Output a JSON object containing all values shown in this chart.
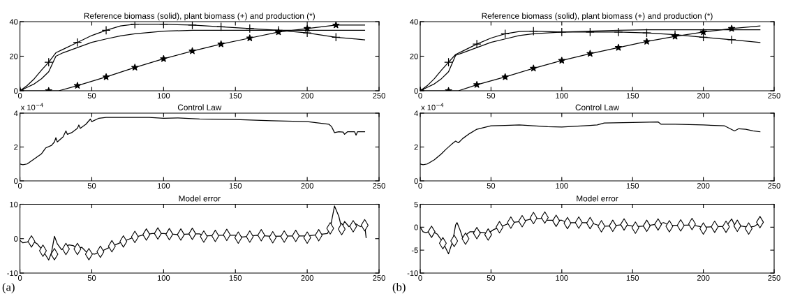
{
  "chart_data": [
    {
      "type": "line",
      "title": "Reference biomass (solid), plant biomass (+) and production (*)",
      "xlim": [
        0,
        250
      ],
      "xticks": [
        0,
        50,
        100,
        150,
        200,
        250
      ],
      "ylim": [
        0,
        40
      ],
      "yticks": [
        0,
        20,
        40
      ],
      "series": [
        {
          "type": "line",
          "color": "#000000",
          "x": [
            0,
            5,
            10,
            15,
            20,
            25,
            30,
            40,
            50,
            60,
            70,
            80,
            100,
            120,
            140,
            160,
            200,
            240
          ],
          "values": [
            0,
            2,
            4,
            7,
            11,
            20,
            22,
            25,
            28,
            30,
            31.8,
            33,
            34.5,
            35,
            35,
            35,
            35,
            35
          ]
        },
        {
          "type": "line",
          "color": "#000000",
          "x": [
            0,
            5,
            10,
            15,
            20,
            25,
            30,
            40,
            50,
            60,
            70,
            80,
            100,
            120,
            140,
            160,
            180,
            200,
            220,
            240
          ],
          "values": [
            0,
            3,
            7,
            12,
            16.5,
            22,
            24,
            28,
            32,
            35,
            37.5,
            38.5,
            38.5,
            38,
            37,
            36,
            35,
            33.5,
            31,
            29.5
          ]
        },
        {
          "type": "line",
          "color": "#000000",
          "x": [
            0,
            20,
            27,
            40,
            60,
            80,
            100,
            120,
            140,
            160,
            180,
            200,
            220,
            240
          ],
          "values": [
            0,
            0,
            0,
            3,
            8,
            13.5,
            18.5,
            23,
            27,
            30.5,
            34,
            36,
            38,
            38
          ]
        },
        {
          "type": "scatter",
          "marker": "cross",
          "color": "#000000",
          "x": [
            0,
            20,
            40,
            60,
            80,
            100,
            120,
            140,
            160,
            180,
            200,
            220
          ],
          "values": [
            0,
            16.5,
            28,
            35,
            38.5,
            38.5,
            38,
            37,
            36,
            35,
            33.5,
            31
          ]
        },
        {
          "type": "scatter",
          "marker": "star",
          "color": "#000000",
          "x": [
            0,
            20,
            40,
            60,
            80,
            100,
            120,
            140,
            160,
            180,
            200,
            220
          ],
          "values": [
            0,
            0,
            3,
            8,
            13.5,
            18.5,
            23,
            27,
            30.5,
            34,
            36,
            38
          ]
        }
      ]
    },
    {
      "type": "line",
      "title": "Control Law",
      "annotations": [
        "x 10$^{−4}$"
      ],
      "xlim": [
        0,
        250
      ],
      "xticks": [
        0,
        50,
        100,
        150,
        200,
        250
      ],
      "ylim": [
        0,
        4
      ],
      "yticks": [
        0,
        2,
        4
      ],
      "series": [
        {
          "type": "line",
          "color": "#000000",
          "x": [
            0,
            2,
            5,
            10,
            15,
            18,
            22,
            24,
            25,
            26,
            30,
            32,
            33,
            36,
            40,
            41,
            42,
            46,
            49,
            50,
            55,
            60,
            90,
            100,
            110,
            125,
            150,
            175,
            200,
            210,
            215,
            217,
            219,
            222,
            225,
            226,
            228,
            233,
            234,
            235,
            240
          ],
          "values": [
            1.0,
            0.95,
            1.0,
            1.3,
            1.6,
            1.95,
            2.1,
            2.3,
            2.55,
            2.3,
            2.6,
            2.95,
            2.75,
            2.85,
            3.1,
            3.3,
            3.1,
            3.35,
            3.65,
            3.5,
            3.7,
            3.75,
            3.75,
            3.7,
            3.72,
            3.65,
            3.62,
            3.55,
            3.5,
            3.4,
            3.35,
            3.2,
            2.85,
            2.9,
            2.88,
            2.75,
            2.9,
            2.9,
            2.7,
            2.9,
            2.9
          ]
        }
      ]
    },
    {
      "type": "line",
      "title": "Model error",
      "annotations": [
        "(a)"
      ],
      "xlim": [
        0,
        250
      ],
      "xticks": [
        0,
        50,
        100,
        150,
        200,
        250
      ],
      "ylim": [
        -10,
        10
      ],
      "yticks": [
        -10,
        0,
        10
      ],
      "series": [
        {
          "type": "line",
          "color": "#000000",
          "x": [
            0,
            2,
            5,
            8,
            12,
            16,
            20,
            22,
            24,
            26,
            29,
            32,
            34,
            37,
            40,
            43,
            47,
            52,
            56,
            64,
            72,
            78,
            85,
            92,
            100,
            110,
            120,
            125,
            128,
            140,
            150,
            155,
            165,
            175,
            190,
            200,
            210,
            214,
            216,
            219,
            222,
            224,
            226,
            229,
            233,
            237,
            240,
            241
          ],
          "values": [
            -0.5,
            -1.2,
            -1,
            -0.5,
            -1.5,
            -3.5,
            -6.2,
            -4,
            0.7,
            -1.5,
            -3.2,
            -2.5,
            -1.8,
            -2,
            -2.8,
            -2.5,
            -4.2,
            -4.5,
            -3.8,
            -2.2,
            -0.8,
            0.2,
            1,
            1.5,
            1.5,
            1.2,
            1.4,
            1.4,
            0.8,
            1.0,
            1.0,
            0.5,
            1.0,
            0.7,
            0.8,
            0.8,
            1.3,
            1.5,
            3,
            9.5,
            6.5,
            3,
            5,
            3.5,
            4.5,
            3.5,
            4,
            0.3
          ]
        },
        {
          "type": "scatter",
          "marker": "diamond",
          "color": "#000000",
          "x": [
            8,
            16,
            24,
            32,
            40,
            48,
            56,
            64,
            72,
            80,
            88,
            96,
            104,
            112,
            120,
            128,
            136,
            144,
            152,
            160,
            168,
            176,
            184,
            192,
            200,
            208,
            216,
            224,
            232,
            240
          ],
          "values": [
            -0.8,
            -3.5,
            -4.5,
            -3,
            -3,
            -4.5,
            -3.8,
            -2.2,
            -0.8,
            0.5,
            1.2,
            1.5,
            1.3,
            1.2,
            1.4,
            0.6,
            0.8,
            1.1,
            0.3,
            0.6,
            1.0,
            0.4,
            0.6,
            0.8,
            0.3,
            1.0,
            3,
            2.8,
            3.6,
            3.9
          ]
        }
      ]
    },
    {
      "type": "line",
      "title": "Reference biomass (solid), plant biomass (+) and production (*)",
      "xlim": [
        0,
        250
      ],
      "xticks": [
        0,
        50,
        100,
        150,
        200,
        250
      ],
      "ylim": [
        0,
        40
      ],
      "yticks": [
        0,
        20,
        40
      ],
      "series": [
        {
          "type": "line",
          "color": "#000000",
          "x": [
            0,
            5,
            10,
            15,
            20,
            25,
            30,
            40,
            50,
            60,
            70,
            80,
            100,
            120,
            140,
            160,
            200,
            240
          ],
          "values": [
            0,
            2,
            4,
            7,
            11,
            20.5,
            22,
            25,
            28,
            30,
            32,
            33,
            34,
            34.5,
            35,
            35.3,
            35.3,
            35.3
          ]
        },
        {
          "type": "line",
          "color": "#000000",
          "x": [
            0,
            5,
            10,
            15,
            20,
            25,
            30,
            40,
            50,
            60,
            70,
            80,
            100,
            120,
            140,
            160,
            180,
            200,
            220,
            240
          ],
          "values": [
            0,
            3,
            7,
            12,
            16.5,
            21,
            23,
            27,
            30.5,
            33,
            34.3,
            34.5,
            34,
            34,
            34,
            33.5,
            32.5,
            31,
            29.5,
            28
          ]
        },
        {
          "type": "line",
          "color": "#000000",
          "x": [
            0,
            20,
            27,
            40,
            60,
            80,
            100,
            120,
            140,
            160,
            180,
            200,
            220,
            240
          ],
          "values": [
            0,
            0,
            0,
            3.5,
            8,
            13,
            17.5,
            21.5,
            25,
            28.5,
            31.5,
            34,
            36,
            37.5
          ]
        },
        {
          "type": "scatter",
          "marker": "cross",
          "color": "#000000",
          "x": [
            0,
            20,
            40,
            60,
            80,
            100,
            120,
            140,
            160,
            180,
            200,
            220
          ],
          "values": [
            0,
            16.5,
            27,
            33,
            34.5,
            34,
            34,
            34,
            33.5,
            32.5,
            31,
            29.5
          ]
        },
        {
          "type": "scatter",
          "marker": "star",
          "color": "#000000",
          "x": [
            0,
            20,
            40,
            60,
            80,
            100,
            120,
            140,
            160,
            180,
            200,
            220
          ],
          "values": [
            0,
            0,
            3.5,
            8,
            13,
            17.5,
            21.5,
            25,
            28.5,
            31.5,
            34,
            36
          ]
        }
      ]
    },
    {
      "type": "line",
      "title": "Control Law",
      "annotations": [
        "x 10$^{−4}$"
      ],
      "xlim": [
        0,
        250
      ],
      "xticks": [
        0,
        50,
        100,
        150,
        200,
        250
      ],
      "ylim": [
        0,
        4
      ],
      "yticks": [
        0,
        2,
        4
      ],
      "series": [
        {
          "type": "line",
          "color": "#000000",
          "x": [
            0,
            2,
            5,
            10,
            15,
            18,
            22,
            25,
            27,
            30,
            35,
            40,
            45,
            50,
            60,
            70,
            80,
            90,
            100,
            120,
            125,
            130,
            150,
            168,
            170,
            180,
            200,
            215,
            222,
            225,
            230,
            235,
            240
          ],
          "values": [
            1.0,
            0.95,
            1.0,
            1.25,
            1.6,
            1.85,
            2.15,
            2.35,
            2.25,
            2.5,
            2.8,
            3.05,
            3.15,
            3.25,
            3.27,
            3.3,
            3.25,
            3.2,
            3.18,
            3.27,
            3.3,
            3.42,
            3.45,
            3.48,
            3.35,
            3.35,
            3.3,
            3.25,
            2.95,
            3.08,
            3.05,
            2.95,
            2.9
          ]
        }
      ]
    },
    {
      "type": "line",
      "title": "Model error",
      "annotations": [
        "(b)"
      ],
      "xlim": [
        0,
        250
      ],
      "xticks": [
        0,
        50,
        100,
        150,
        200,
        250
      ],
      "ylim": [
        -10,
        5
      ],
      "yticks": [
        -10,
        -5,
        0,
        5
      ],
      "series": [
        {
          "type": "line",
          "color": "#000000",
          "x": [
            0,
            2,
            4,
            8,
            12,
            16,
            20,
            23,
            25,
            26,
            28,
            30,
            33,
            35,
            40,
            48,
            52,
            56,
            64,
            72,
            80,
            87,
            90,
            96,
            100,
            104,
            112,
            120,
            128,
            136,
            144,
            152,
            160,
            168,
            172,
            176,
            184,
            192,
            200,
            208,
            216,
            220,
            222,
            232,
            236,
            240
          ],
          "values": [
            0,
            -1,
            -1.2,
            -0.8,
            -1.5,
            -3.3,
            -5.8,
            -3,
            0.5,
            1,
            -0.5,
            -2.3,
            -1.5,
            -1,
            -1,
            -1.3,
            -0.5,
            0,
            1,
            1.3,
            1.9,
            1.9,
            1.5,
            1.5,
            1.5,
            1,
            1,
            1,
            0.2,
            0.3,
            0.6,
            0.1,
            0.3,
            0.7,
            1,
            0.4,
            0.4,
            0.5,
            0,
            0.1,
            0.2,
            1.8,
            0.5,
            0,
            0.2,
            1.0
          ]
        },
        {
          "type": "scatter",
          "marker": "diamond",
          "color": "#000000",
          "x": [
            8,
            16,
            24,
            32,
            40,
            48,
            56,
            64,
            72,
            80,
            88,
            96,
            104,
            112,
            120,
            128,
            136,
            144,
            152,
            160,
            168,
            176,
            184,
            192,
            200,
            208,
            216,
            224,
            232,
            240
          ],
          "values": [
            -1,
            -3.5,
            -3,
            -2.5,
            -1.3,
            -1.6,
            0,
            1,
            1.3,
            2,
            2.1,
            1.4,
            0.9,
            1,
            0.9,
            0.2,
            0.3,
            0.6,
            -0.1,
            0.3,
            0.6,
            0.2,
            0.4,
            0.7,
            -0.3,
            0.1,
            0.1,
            0.3,
            -0.3,
            1.1
          ]
        }
      ]
    }
  ]
}
